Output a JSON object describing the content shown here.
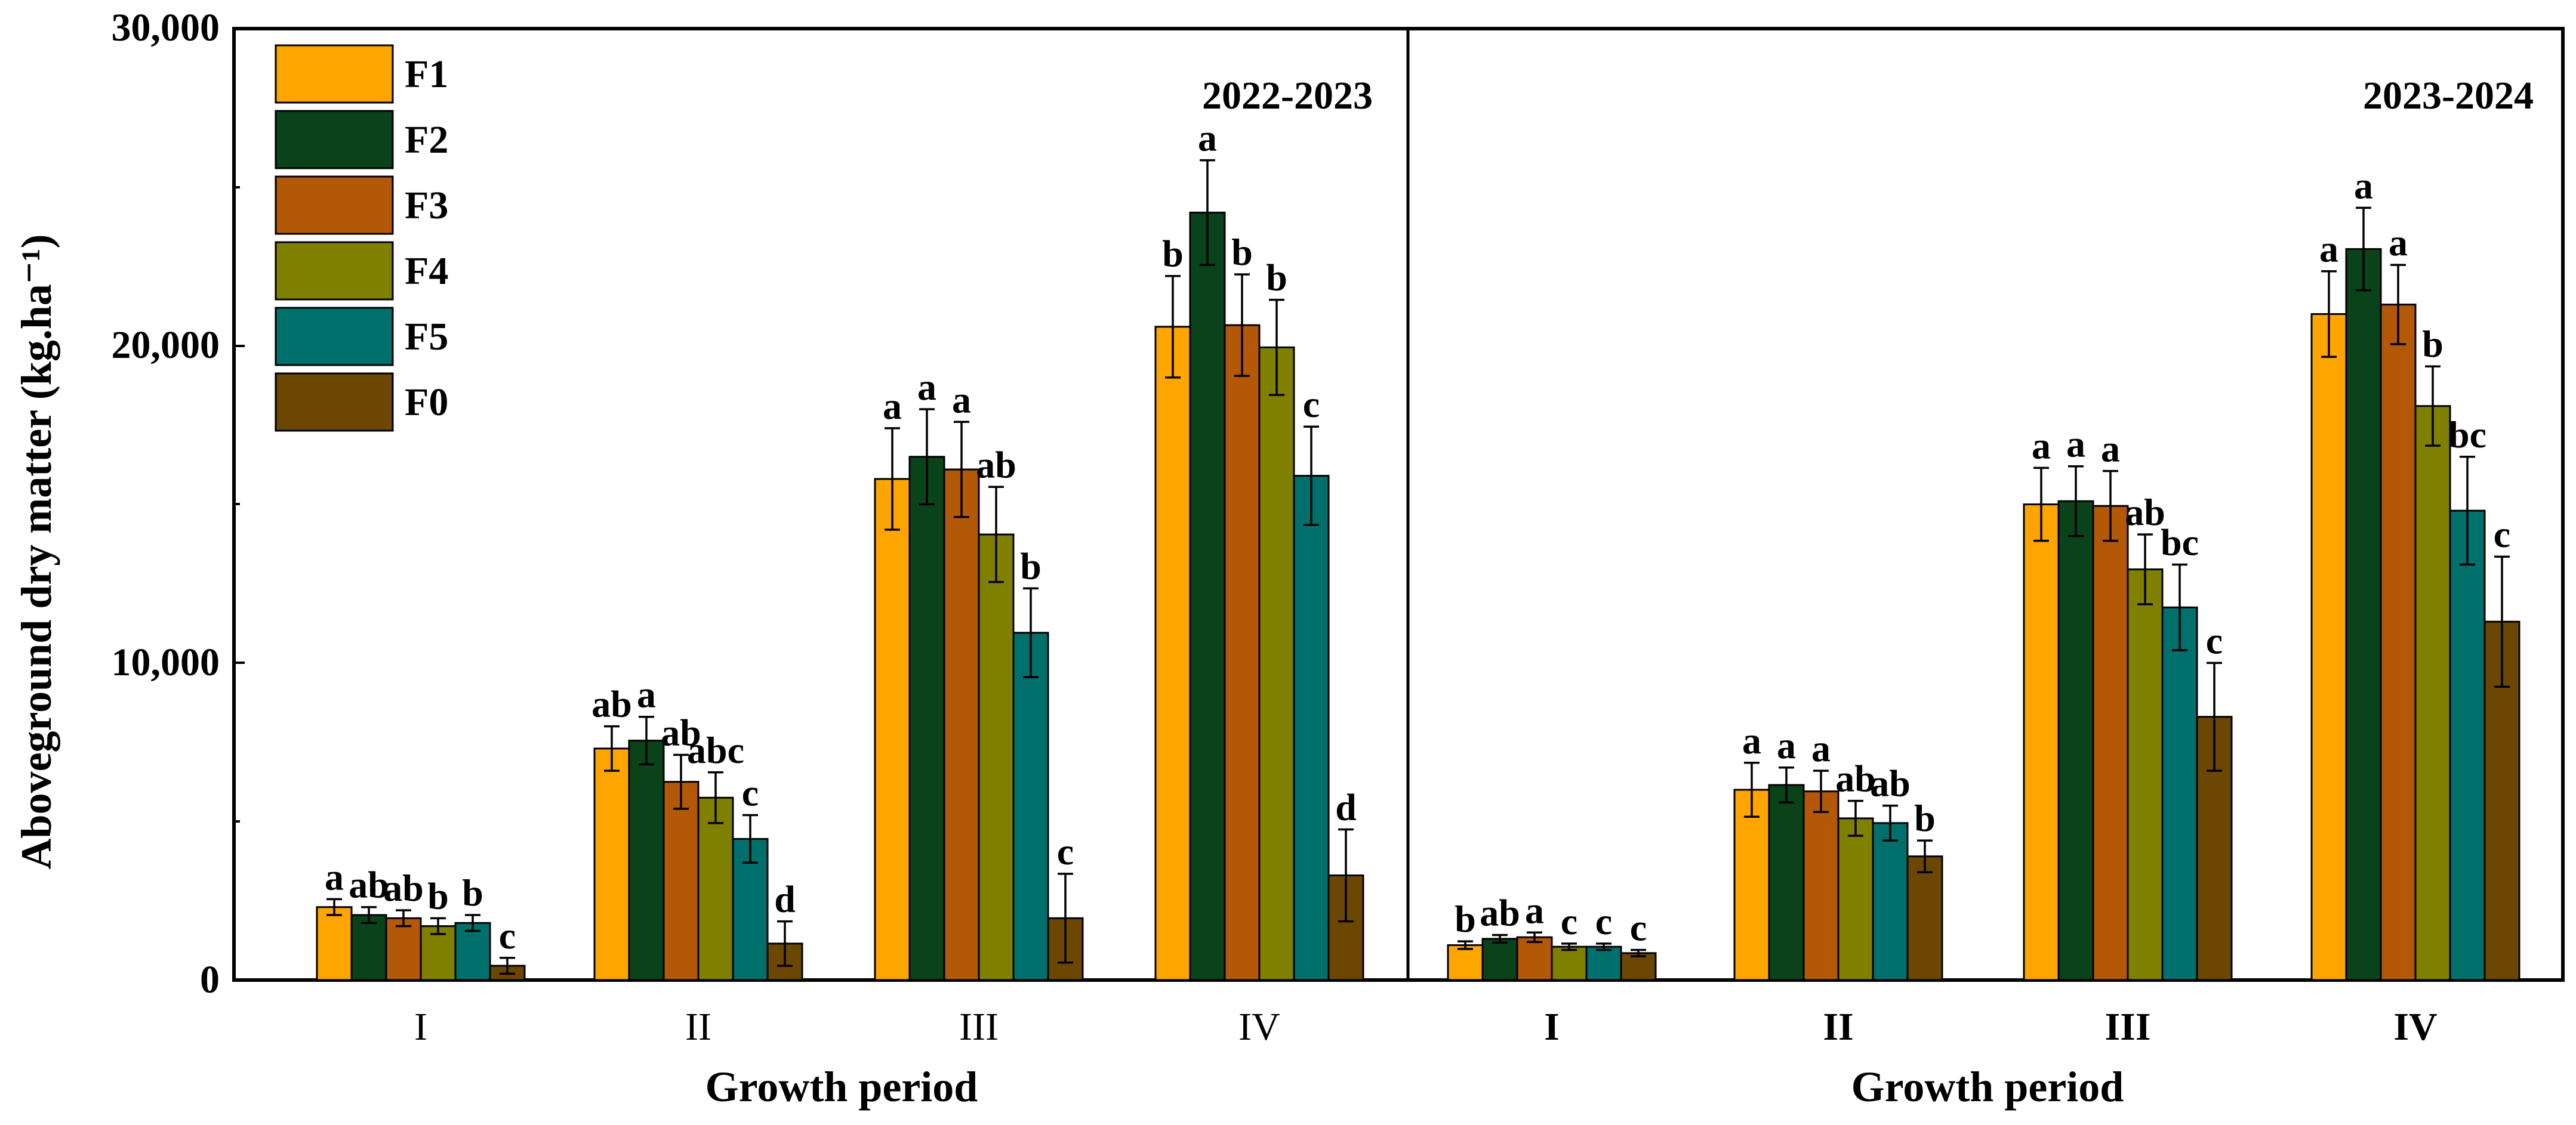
{
  "chart_data": {
    "type": "bar",
    "ylabel": "Aboveground dry matter (kg.ha⁻¹)",
    "ylim": [
      0,
      30000
    ],
    "yticks": [
      "0",
      "10,000",
      "20,000",
      "30,000"
    ],
    "legend_position": "top-left",
    "series_names": [
      "F1",
      "F2",
      "F3",
      "F4",
      "F5",
      "F0"
    ],
    "series_colors": [
      "#FFA500",
      "#0A4319",
      "#B35806",
      "#7F7F00",
      "#00706D",
      "#6B4703"
    ],
    "panels": [
      {
        "title": "2022-2023",
        "xlabel": "Growth period",
        "categories": [
          "I",
          "II",
          "III",
          "IV"
        ],
        "series": [
          {
            "name": "F1",
            "values": [
              2300,
              7300,
              15800,
              20600
            ],
            "errors": [
              250,
              700,
              1600,
              1600
            ],
            "letters": [
              "a",
              "ab",
              "a",
              "b"
            ]
          },
          {
            "name": "F2",
            "values": [
              2050,
              7550,
              16500,
              24200
            ],
            "errors": [
              250,
              750,
              1500,
              1650
            ],
            "letters": [
              "ab",
              "a",
              "a",
              "a"
            ]
          },
          {
            "name": "F3",
            "values": [
              1950,
              6250,
              16100,
              20650
            ],
            "errors": [
              250,
              850,
              1500,
              1600
            ],
            "letters": [
              "ab",
              "ab",
              "a",
              "b"
            ]
          },
          {
            "name": "F4",
            "values": [
              1700,
              5750,
              14050,
              19950
            ],
            "errors": [
              250,
              800,
              1500,
              1500
            ],
            "letters": [
              "b",
              "abc",
              "ab",
              "b"
            ]
          },
          {
            "name": "F5",
            "values": [
              1800,
              4450,
              10950,
              15900
            ],
            "errors": [
              250,
              750,
              1400,
              1550
            ],
            "letters": [
              "b",
              "c",
              "b",
              "c"
            ]
          },
          {
            "name": "F0",
            "values": [
              450,
              1150,
              1950,
              3300
            ],
            "errors": [
              250,
              700,
              1400,
              1450
            ],
            "letters": [
              "c",
              "d",
              "c",
              "d"
            ]
          }
        ]
      },
      {
        "title": "2023-2024",
        "xlabel": "Growth period",
        "categories": [
          "I",
          "II",
          "III",
          "IV"
        ],
        "series": [
          {
            "name": "F1",
            "values": [
              1100,
              6000,
              15000,
              21000
            ],
            "errors": [
              120,
              850,
              1150,
              1350
            ],
            "letters": [
              "b",
              "a",
              "a",
              "a"
            ]
          },
          {
            "name": "F2",
            "values": [
              1300,
              6150,
              15100,
              23050
            ],
            "errors": [
              120,
              550,
              1100,
              1300
            ],
            "letters": [
              "ab",
              "a",
              "a",
              "a"
            ]
          },
          {
            "name": "F3",
            "values": [
              1350,
              5950,
              14950,
              21300
            ],
            "errors": [
              150,
              650,
              1100,
              1250
            ],
            "letters": [
              "a",
              "a",
              "a",
              "a"
            ]
          },
          {
            "name": "F4",
            "values": [
              1050,
              5100,
              12950,
              18100
            ],
            "errors": [
              100,
              550,
              1100,
              1250
            ],
            "letters": [
              "c",
              "ab",
              "ab",
              "b"
            ]
          },
          {
            "name": "F5",
            "values": [
              1050,
              4950,
              11750,
              14800
            ],
            "errors": [
              100,
              550,
              1350,
              1700
            ],
            "letters": [
              "c",
              "ab",
              "bc",
              "bc"
            ]
          },
          {
            "name": "F0",
            "values": [
              850,
              3900,
              8300,
              11300
            ],
            "errors": [
              100,
              500,
              1700,
              2050
            ],
            "letters": [
              "c",
              "b",
              "c",
              "c"
            ]
          }
        ]
      }
    ]
  }
}
